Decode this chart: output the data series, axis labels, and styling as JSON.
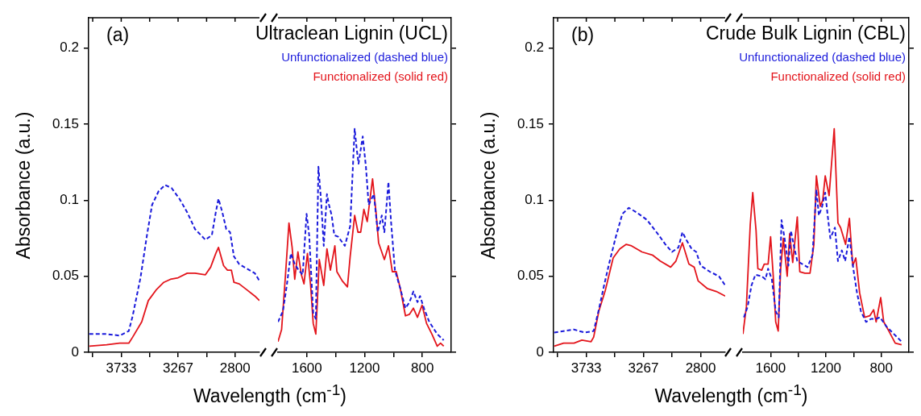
{
  "chart_data": [
    {
      "type": "line",
      "annotations": [
        "(a)"
      ],
      "xlabel": "Wavelength (cm$^{-1}$)",
      "ylabel": "Absorbance (a.u.)",
      "xlim": [
        4000,
        2600
      ],
      "xticks": [
        {
          "value": 3966.7,
          "label": null
        },
        3733,
        {
          "value": 3500,
          "label": null
        },
        3267,
        {
          "value": 3033.3,
          "label": null
        },
        2800
      ],
      "ylim": [
        0,
        0.22
      ],
      "yticks": [
        0,
        0.05,
        0.1,
        0.15,
        0.2
      ],
      "grid": false,
      "series": [
        {
          "color": "#1a1adb",
          "line_style": "dashed",
          "x": [
            3995,
            3852,
            3746,
            3671,
            3639,
            3575,
            3522,
            3480,
            3426,
            3373,
            3320,
            3256,
            3192,
            3128,
            3043,
            2990,
            2958,
            2936,
            2904,
            2872,
            2841,
            2809,
            2766,
            2702,
            2638,
            2600
          ],
          "values": [
            0.012,
            0.012,
            0.011,
            0.014,
            0.024,
            0.049,
            0.077,
            0.097,
            0.106,
            0.11,
            0.108,
            0.101,
            0.092,
            0.081,
            0.074,
            0.077,
            0.092,
            0.101,
            0.092,
            0.081,
            0.079,
            0.063,
            0.058,
            0.055,
            0.052,
            0.047
          ]
        },
        {
          "color": "#e3141b",
          "line_style": "solid",
          "x": [
            3995,
            3852,
            3746,
            3671,
            3639,
            3565,
            3511,
            3447,
            3384,
            3330,
            3267,
            3192,
            3128,
            3043,
            3000,
            2958,
            2936,
            2894,
            2862,
            2830,
            2809,
            2766,
            2702,
            2638,
            2600
          ],
          "values": [
            0.004,
            0.005,
            0.006,
            0.006,
            0.01,
            0.02,
            0.034,
            0.041,
            0.046,
            0.048,
            0.049,
            0.052,
            0.052,
            0.051,
            0.056,
            0.065,
            0.069,
            0.057,
            0.054,
            0.054,
            0.046,
            0.045,
            0.041,
            0.037,
            0.034
          ]
        }
      ]
    },
    {
      "type": "line",
      "title": "Ultraclean Lignin (UCL)",
      "legend": "top right",
      "tick_labels": "x",
      "xlim": [
        1800,
        600
      ],
      "xticks": [
        1600,
        {
          "value": 1400,
          "label": null
        },
        1200,
        {
          "value": 1000,
          "label": null
        },
        800
      ],
      "ylim": [
        0,
        0.22
      ],
      "yticks": [
        0,
        0.05,
        0.1,
        0.15,
        0.2
      ],
      "grid": false,
      "series": [
        {
          "name": "Unfunctionalized (dashed blue)",
          "color": "#1a1adb",
          "line_style": "dashed",
          "x": [
            1800,
            1766,
            1739,
            1711,
            1684,
            1657,
            1629,
            1602,
            1584,
            1556,
            1538,
            1520,
            1501,
            1483,
            1461,
            1447,
            1428,
            1410,
            1383,
            1337,
            1300,
            1269,
            1255,
            1242,
            1213,
            1191,
            1172,
            1136,
            1109,
            1081,
            1063,
            1035,
            1017,
            990,
            953,
            917,
            889,
            862,
            834,
            816,
            789,
            752,
            697,
            652
          ],
          "values": [
            0.02,
            0.027,
            0.044,
            0.065,
            0.058,
            0.054,
            0.051,
            0.091,
            0.077,
            0.026,
            0.022,
            0.122,
            0.099,
            0.07,
            0.104,
            0.097,
            0.09,
            0.077,
            0.076,
            0.07,
            0.083,
            0.147,
            0.134,
            0.124,
            0.142,
            0.122,
            0.097,
            0.104,
            0.079,
            0.09,
            0.079,
            0.112,
            0.086,
            0.054,
            0.042,
            0.029,
            0.033,
            0.04,
            0.033,
            0.037,
            0.029,
            0.02,
            0.012,
            0.008
          ]
        },
        {
          "name": "Functionalized (solid red)",
          "color": "#e3141b",
          "line_style": "solid",
          "x": [
            1800,
            1775,
            1748,
            1724,
            1702,
            1684,
            1662,
            1638,
            1620,
            1596,
            1574,
            1556,
            1538,
            1514,
            1483,
            1461,
            1437,
            1406,
            1392,
            1355,
            1319,
            1300,
            1269,
            1246,
            1227,
            1205,
            1182,
            1145,
            1121,
            1103,
            1063,
            1035,
            1008,
            981,
            953,
            917,
            889,
            862,
            834,
            802,
            771,
            734,
            697,
            674,
            652
          ],
          "values": [
            0.007,
            0.015,
            0.051,
            0.085,
            0.069,
            0.048,
            0.066,
            0.051,
            0.045,
            0.065,
            0.044,
            0.019,
            0.012,
            0.061,
            0.044,
            0.068,
            0.054,
            0.07,
            0.053,
            0.047,
            0.043,
            0.063,
            0.09,
            0.079,
            0.079,
            0.094,
            0.086,
            0.114,
            0.092,
            0.072,
            0.061,
            0.07,
            0.053,
            0.053,
            0.042,
            0.024,
            0.025,
            0.029,
            0.023,
            0.031,
            0.019,
            0.012,
            0.004,
            0.006,
            0.004
          ]
        }
      ]
    },
    {
      "type": "line",
      "annotations": [
        "(b)"
      ],
      "xlabel": "Wavelength (cm$^{-1}$)",
      "ylabel": "Absorbance (a.u.)",
      "xlim": [
        4000,
        2600
      ],
      "xticks": [
        {
          "value": 3966.7,
          "label": null
        },
        3733,
        {
          "value": 3500,
          "label": null
        },
        3267,
        {
          "value": 3033.3,
          "label": null
        },
        2800
      ],
      "ylim": [
        0,
        0.22
      ],
      "yticks": [
        0,
        0.05,
        0.1,
        0.15,
        0.2
      ],
      "grid": false,
      "series": [
        {
          "color": "#1a1adb",
          "line_style": "dashed",
          "x": [
            3995,
            3833,
            3748,
            3673,
            3631,
            3588,
            3545,
            3492,
            3439,
            3386,
            3322,
            3237,
            3151,
            3088,
            3034,
            2981,
            2949,
            2917,
            2874,
            2836,
            2800,
            2725,
            2651,
            2600
          ],
          "values": [
            0.013,
            0.015,
            0.013,
            0.014,
            0.028,
            0.044,
            0.059,
            0.076,
            0.091,
            0.095,
            0.092,
            0.087,
            0.078,
            0.071,
            0.066,
            0.069,
            0.079,
            0.074,
            0.068,
            0.066,
            0.057,
            0.053,
            0.05,
            0.044
          ]
        },
        {
          "color": "#e3141b",
          "line_style": "solid",
          "x": [
            3995,
            3918,
            3833,
            3769,
            3694,
            3673,
            3631,
            3577,
            3514,
            3460,
            3407,
            3364,
            3279,
            3194,
            3130,
            3045,
            3002,
            2949,
            2896,
            2853,
            2821,
            2747,
            2672,
            2600
          ],
          "values": [
            0.004,
            0.006,
            0.006,
            0.008,
            0.007,
            0.01,
            0.027,
            0.041,
            0.062,
            0.068,
            0.071,
            0.07,
            0.066,
            0.064,
            0.06,
            0.056,
            0.06,
            0.072,
            0.058,
            0.056,
            0.047,
            0.042,
            0.04,
            0.037
          ]
        }
      ]
    },
    {
      "type": "line",
      "title": "Crude Bulk Lignin (CBL)",
      "legend": "top right",
      "tick_labels": "x",
      "xlim": [
        1800,
        600
      ],
      "xticks": [
        1600,
        {
          "value": 1400,
          "label": null
        },
        1200,
        {
          "value": 1000,
          "label": null
        },
        800
      ],
      "ylim": [
        0,
        0.22
      ],
      "yticks": [
        0,
        0.05,
        0.1,
        0.15,
        0.2
      ],
      "grid": false,
      "series": [
        {
          "name": "Unfunctionalized (dashed blue)",
          "color": "#1a1adb",
          "line_style": "dashed",
          "x": [
            1793,
            1766,
            1738,
            1710,
            1664,
            1637,
            1618,
            1591,
            1563,
            1541,
            1521,
            1499,
            1471,
            1453,
            1434,
            1407,
            1370,
            1333,
            1297,
            1269,
            1251,
            1227,
            1205,
            1186,
            1168,
            1135,
            1113,
            1085,
            1061,
            1030,
            1002,
            975,
            947,
            910,
            874,
            837,
            809,
            763,
            708,
            653
          ],
          "values": [
            0.023,
            0.03,
            0.044,
            0.051,
            0.05,
            0.048,
            0.055,
            0.048,
            0.027,
            0.023,
            0.087,
            0.075,
            0.057,
            0.08,
            0.071,
            0.06,
            0.058,
            0.056,
            0.064,
            0.107,
            0.09,
            0.096,
            0.105,
            0.089,
            0.075,
            0.082,
            0.06,
            0.067,
            0.06,
            0.076,
            0.055,
            0.039,
            0.027,
            0.02,
            0.022,
            0.022,
            0.023,
            0.017,
            0.012,
            0.007
          ]
        },
        {
          "name": "Functionalized (solid red)",
          "color": "#e3141b",
          "line_style": "solid",
          "x": [
            1800,
            1775,
            1747,
            1729,
            1705,
            1692,
            1664,
            1646,
            1618,
            1600,
            1582,
            1563,
            1545,
            1527,
            1508,
            1480,
            1462,
            1440,
            1407,
            1389,
            1352,
            1315,
            1287,
            1269,
            1241,
            1223,
            1205,
            1177,
            1140,
            1113,
            1094,
            1058,
            1030,
            1006,
            984,
            956,
            920,
            883,
            855,
            837,
            804,
            782,
            745,
            699,
            653
          ],
          "values": [
            0.012,
            0.03,
            0.084,
            0.105,
            0.08,
            0.055,
            0.054,
            0.058,
            0.058,
            0.076,
            0.052,
            0.02,
            0.014,
            0.055,
            0.075,
            0.05,
            0.078,
            0.059,
            0.089,
            0.053,
            0.052,
            0.052,
            0.071,
            0.116,
            0.096,
            0.1,
            0.116,
            0.103,
            0.147,
            0.085,
            0.082,
            0.071,
            0.088,
            0.057,
            0.062,
            0.039,
            0.023,
            0.024,
            0.028,
            0.02,
            0.036,
            0.02,
            0.014,
            0.006,
            0.005
          ]
        }
      ]
    }
  ]
}
